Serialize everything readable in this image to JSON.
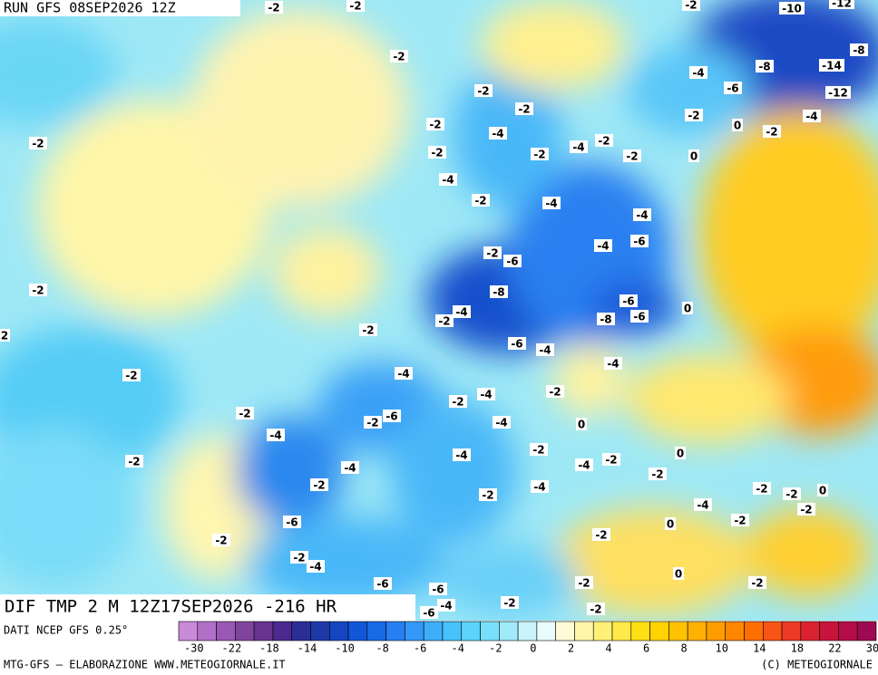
{
  "header": {
    "run": "RUN GFS 08SEP2026 12Z"
  },
  "map": {
    "title": "DIF TMP 2 M 12Z17SEP2026 -216 HR",
    "labels": [
      -2,
      -2,
      -2,
      -10,
      -12,
      -2,
      -8,
      -8,
      -14,
      -4,
      -6,
      -2,
      -12,
      -2,
      -2,
      -4,
      -2,
      -2,
      -4,
      0,
      -2,
      -2,
      -2,
      -4,
      -2,
      -2,
      0,
      -4,
      -2,
      -4,
      -4,
      -4,
      -6,
      -2,
      -6,
      -2,
      -8,
      -6,
      0,
      -4,
      -2,
      -8,
      -6,
      2,
      -2,
      -6,
      -4,
      -4,
      -4,
      -2,
      -2,
      -4,
      -2,
      -2,
      -2,
      -6,
      -4,
      0,
      -4,
      -2,
      0,
      -4,
      -2,
      -4,
      -4,
      -2,
      -2,
      -2,
      -4,
      -2,
      -2,
      -2,
      0,
      -4,
      -2,
      -6,
      0,
      -2,
      -2,
      -2,
      -2,
      -4,
      0,
      -6,
      -2,
      -2,
      -6,
      -4,
      -2,
      -2,
      -6
    ]
  },
  "legend": {
    "source": "DATI NCEP GFS 0.25°",
    "colors": [
      "#c98ad8",
      "#b070c8",
      "#9858b4",
      "#80449e",
      "#683490",
      "#4a2a8e",
      "#2c2e96",
      "#1e3aa8",
      "#1446c0",
      "#1256d8",
      "#1a6ae8",
      "#2680f2",
      "#3498f8",
      "#3eaefa",
      "#48c2fa",
      "#5ad4fa",
      "#78e0fa",
      "#a0eafa",
      "#c8f4fa",
      "#e8fcfc",
      "#fffbd8",
      "#fff6a8",
      "#fff078",
      "#ffea48",
      "#ffe014",
      "#ffd200",
      "#ffc200",
      "#ffb000",
      "#ff9c00",
      "#ff8600",
      "#ff6e00",
      "#f85418",
      "#ec3a24",
      "#dc2230",
      "#c8143c",
      "#b40c48",
      "#9e0a52"
    ],
    "ticks": [
      -30,
      -22,
      -18,
      -14,
      -10,
      -8,
      -6,
      -4,
      -2,
      0,
      2,
      4,
      6,
      8,
      10,
      14,
      18,
      22,
      30
    ]
  },
  "footer": {
    "left": "MTG-GFS — ELABORAZIONE WWW.METEOGIORNALE.IT",
    "right": "(C) METEOGIORNALE"
  }
}
